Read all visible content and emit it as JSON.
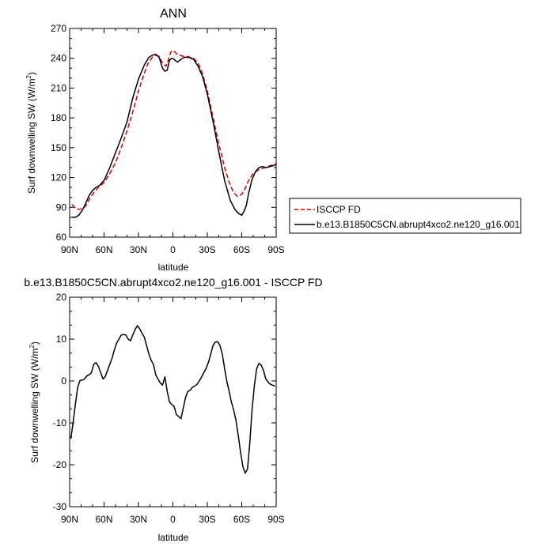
{
  "chart_data": [
    {
      "type": "line",
      "title": "ANN",
      "xlabel": "latitude",
      "ylabel": "Surf downwelling SW (W/m",
      "ylabel_sup": "2",
      "ylabel_tail": ")",
      "xlim": [
        90,
        -90
      ],
      "ylim": [
        60,
        270
      ],
      "xticks": [
        {
          "value": 90,
          "label": "90N"
        },
        {
          "value": 60,
          "label": "60N"
        },
        {
          "value": 30,
          "label": "30N"
        },
        {
          "value": 0,
          "label": "0"
        },
        {
          "value": -30,
          "label": "30S"
        },
        {
          "value": -60,
          "label": "60S"
        },
        {
          "value": -90,
          "label": "90S"
        }
      ],
      "yticks": [
        60,
        90,
        120,
        150,
        180,
        210,
        240,
        270
      ],
      "legend": "outside-right",
      "series": [
        {
          "name": "ISCCP FD",
          "color": "#cc0000",
          "dash": "dashed",
          "x": [
            88,
            85,
            82,
            78,
            75,
            72,
            68,
            65,
            60,
            55,
            50,
            45,
            40,
            35,
            30,
            25,
            22,
            18,
            15,
            12,
            9,
            6,
            4,
            2,
            0,
            -2,
            -4,
            -6,
            -9,
            -12,
            -15,
            -18,
            -22,
            -26,
            -30,
            -35,
            -40,
            -45,
            -50,
            -53,
            -56,
            -60,
            -63,
            -66,
            -70,
            -75,
            -80,
            -85,
            -90
          ],
          "y": [
            93,
            89,
            88,
            89,
            93,
            100,
            106,
            110,
            115,
            124,
            135,
            150,
            167,
            186,
            207,
            225,
            234,
            241,
            243,
            242,
            235,
            232,
            238,
            246,
            248,
            246,
            244,
            243,
            242,
            242,
            241,
            240,
            235,
            224,
            207,
            180,
            154,
            130,
            112,
            105,
            101,
            103,
            109,
            117,
            124,
            128,
            130,
            132,
            134
          ]
        },
        {
          "name": "b.e13.B1850C5CN.abrupt4xco2.ne120_g16.001",
          "color": "#000000",
          "dash": "solid",
          "x": [
            88,
            85,
            82,
            79,
            76,
            73,
            70,
            67,
            64,
            60,
            55,
            50,
            45,
            40,
            35,
            30,
            25,
            21,
            18,
            15,
            12,
            9,
            7,
            5,
            3,
            1,
            -1,
            -4,
            -7,
            -10,
            -14,
            -18,
            -22,
            -26,
            -30,
            -35,
            -40,
            -45,
            -50,
            -54,
            -57,
            -60,
            -62,
            -64,
            -66,
            -69,
            -72,
            -75,
            -78,
            -81,
            -85,
            -90
          ],
          "y": [
            80,
            80,
            82,
            87,
            94,
            102,
            107,
            110,
            112,
            117,
            130,
            145,
            160,
            176,
            200,
            219,
            233,
            241,
            243,
            244,
            241,
            230,
            227,
            228,
            238,
            240,
            239,
            236,
            239,
            241,
            241,
            239,
            232,
            221,
            204,
            176,
            146,
            117,
            97,
            88,
            84,
            82,
            86,
            92,
            104,
            118,
            126,
            130,
            131,
            130,
            131,
            133
          ]
        }
      ]
    },
    {
      "type": "line",
      "title": "b.e13.B1850C5CN.abrupt4xco2.ne120_g16.001 - ISCCP FD",
      "xlabel": "latitude",
      "ylabel": "Surf downwelling SW (W/m",
      "ylabel_sup": "2",
      "ylabel_tail": ")",
      "xlim": [
        90,
        -90
      ],
      "ylim": [
        -30,
        20
      ],
      "xticks": [
        {
          "value": 90,
          "label": "90N"
        },
        {
          "value": 60,
          "label": "60N"
        },
        {
          "value": 30,
          "label": "30N"
        },
        {
          "value": 0,
          "label": "0"
        },
        {
          "value": -30,
          "label": "30S"
        },
        {
          "value": -60,
          "label": "60S"
        },
        {
          "value": -90,
          "label": "90S"
        }
      ],
      "yticks": [
        -30,
        -20,
        -10,
        0,
        10,
        20
      ],
      "series": [
        {
          "name": "",
          "color": "#000000",
          "dash": "solid",
          "x": [
            89,
            87,
            85,
            83,
            81,
            79,
            77,
            75,
            73,
            71,
            69,
            67,
            65,
            63,
            61,
            59,
            57,
            55,
            53,
            51,
            49,
            47,
            45,
            43,
            41,
            39,
            37,
            35,
            33,
            31,
            29,
            27,
            25,
            23,
            21,
            19,
            17,
            15,
            13,
            11,
            9,
            7,
            5,
            3,
            1,
            -1,
            -3,
            -5,
            -7,
            -9,
            -11,
            -13,
            -15,
            -17,
            -19,
            -21,
            -23,
            -25,
            -27,
            -29,
            -31,
            -33,
            -35,
            -37,
            -39,
            -41,
            -43,
            -45,
            -47,
            -49,
            -51,
            -53,
            -55,
            -57,
            -59,
            -61,
            -63,
            -65,
            -67,
            -69,
            -71,
            -73,
            -75,
            -77,
            -79,
            -81,
            -83,
            -85,
            -87,
            -89
          ],
          "y": [
            -13.8,
            -10,
            -5.5,
            -1.5,
            0.1,
            0.2,
            0.5,
            1.2,
            1.5,
            2,
            4,
            4.4,
            3.5,
            2,
            0.5,
            1,
            2.5,
            4,
            5.5,
            7.5,
            9,
            10,
            11,
            11.1,
            11,
            10,
            9.6,
            11,
            12.2,
            13.2,
            12.5,
            11.5,
            10.5,
            8.5,
            6.5,
            5,
            4,
            1.5,
            0.5,
            -0.5,
            -1,
            1,
            -2.5,
            -5,
            -5.6,
            -6,
            -8,
            -8.5,
            -9,
            -6.5,
            -4,
            -2.5,
            -2.2,
            -1.5,
            -1.2,
            -0.8,
            0,
            1,
            2,
            3,
            4.5,
            6.5,
            8.5,
            9.3,
            9.4,
            8.5,
            6.5,
            3,
            0,
            -2.5,
            -5,
            -7,
            -9.5,
            -13,
            -17,
            -20.5,
            -22,
            -21,
            -15,
            -7,
            -1,
            3,
            4.2,
            3.8,
            2.5,
            0.5,
            -0.3,
            -0.8,
            -1,
            -1.2
          ]
        }
      ]
    }
  ]
}
